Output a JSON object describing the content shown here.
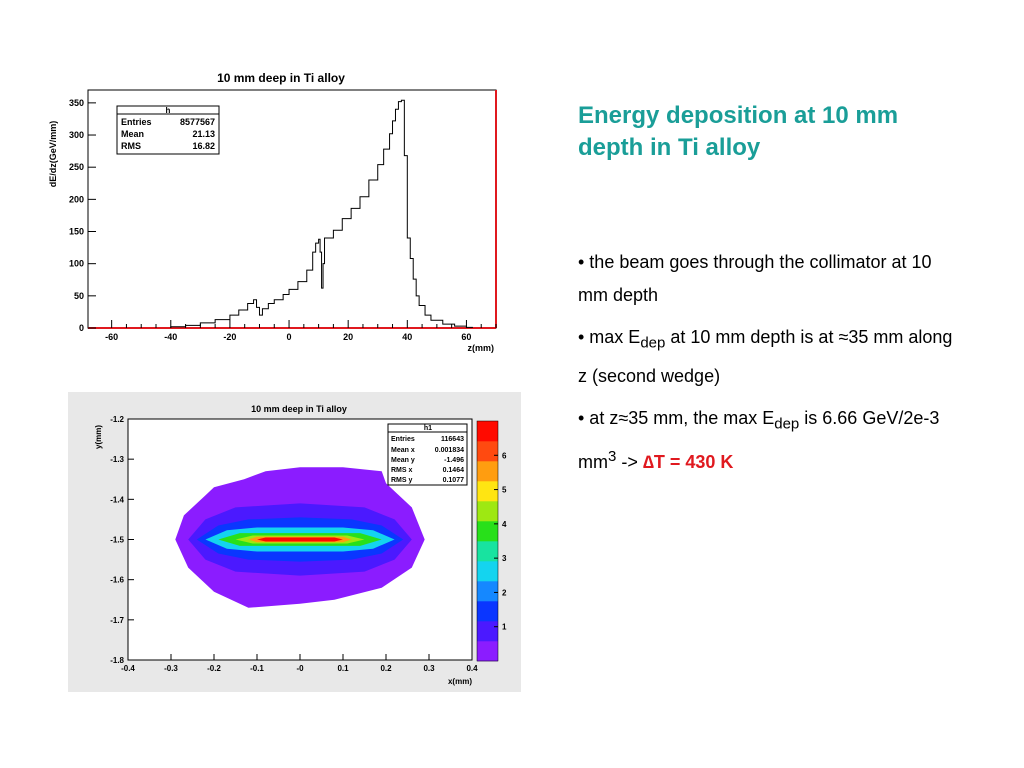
{
  "slide": {
    "title": "Energy deposition at 10 mm depth in Ti alloy",
    "bullets": [
      {
        "text": "• the beam goes through the collimator at 10 mm depth"
      },
      {
        "pre": "• max E",
        "sub": "dep",
        "post": " at 10 mm depth is at ≈35 mm along z (second wedge)"
      },
      {
        "pre": "• at z≈35 mm, the max E",
        "sub": "dep",
        "mid": " is 6.66 GeV/2e-3 mm",
        "sup": "3",
        "mid2": " -> ",
        "highlight": "∆T = 430 K"
      }
    ]
  },
  "chart_data": [
    {
      "type": "histogram",
      "title": "10 mm deep in Ti alloy",
      "xlabel": "z(mm)",
      "ylabel": "dE/dz(GeV/mm)",
      "xlim": [
        -68,
        70
      ],
      "ylim": [
        0,
        370
      ],
      "xticks": [
        -60,
        -40,
        -20,
        0,
        20,
        40,
        60
      ],
      "yticks": [
        0,
        50,
        100,
        150,
        200,
        250,
        300,
        350
      ],
      "stats_box": {
        "name": "h",
        "rows": [
          {
            "label": "Entries",
            "value": "8577567"
          },
          {
            "label": "Mean",
            "value": "21.13"
          },
          {
            "label": "RMS",
            "value": "16.82"
          }
        ]
      },
      "series": [
        {
          "points": [
            [
              -40,
              2
            ],
            [
              -35,
              4
            ],
            [
              -30,
              8
            ],
            [
              -25,
              13
            ],
            [
              -20,
              20
            ],
            [
              -17,
              28
            ],
            [
              -14,
              38
            ],
            [
              -12,
              44
            ],
            [
              -11,
              32
            ],
            [
              -10,
              20
            ],
            [
              -9,
              30
            ],
            [
              -7,
              38
            ],
            [
              -5,
              44
            ],
            [
              -2,
              52
            ],
            [
              0,
              60
            ],
            [
              3,
              72
            ],
            [
              6,
              90
            ],
            [
              8,
              118
            ],
            [
              9,
              132
            ],
            [
              10,
              138
            ],
            [
              10.5,
              118
            ],
            [
              11,
              62
            ],
            [
              11.5,
              100
            ],
            [
              12,
              140
            ],
            [
              15,
              152
            ],
            [
              18,
              170
            ],
            [
              21,
              186
            ],
            [
              24,
              204
            ],
            [
              27,
              230
            ],
            [
              30,
              254
            ],
            [
              32,
              278
            ],
            [
              34,
              302
            ],
            [
              35,
              322
            ],
            [
              36,
              340
            ],
            [
              37,
              352
            ],
            [
              38,
              354
            ],
            [
              39,
              268
            ],
            [
              40,
              140
            ],
            [
              41,
              108
            ],
            [
              42,
              76
            ],
            [
              43,
              50
            ],
            [
              44,
              35
            ],
            [
              46,
              20
            ],
            [
              48,
              12
            ],
            [
              52,
              6
            ],
            [
              56,
              3
            ],
            [
              60,
              1
            ],
            [
              62,
              0
            ]
          ]
        }
      ]
    },
    {
      "type": "heatmap",
      "title": "10 mm deep in Ti alloy",
      "xlabel": "x(mm)",
      "ylabel": "y(mm)",
      "xlim": [
        -0.4,
        0.4
      ],
      "ylim": [
        -1.8,
        -1.2
      ],
      "xticks": [
        "-0.4",
        "-0.3",
        "-0.2",
        "-0.1",
        "-0",
        "0.1",
        "0.2",
        "0.3",
        "0.4"
      ],
      "yticks": [
        "-1.2",
        "-1.3",
        "-1.4",
        "-1.5",
        "-1.6",
        "-1.7",
        "-1.8"
      ],
      "zlim": [
        0,
        7
      ],
      "zticks": [
        "1",
        "2",
        "3",
        "4",
        "5",
        "6"
      ],
      "stats_box": {
        "name": "h1",
        "rows": [
          {
            "label": "Entries",
            "value": "116643"
          },
          {
            "label": "Mean x",
            "value": "0.001834"
          },
          {
            "label": "Mean y",
            "value": "-1.496"
          },
          {
            "label": "RMS x",
            "value": "0.1464"
          },
          {
            "label": "RMS y",
            "value": "0.1077"
          }
        ]
      },
      "contours": [
        {
          "level": 0.3,
          "polygon": [
            [
              -0.29,
              -1.5
            ],
            [
              -0.27,
              -1.44
            ],
            [
              -0.22,
              -1.39
            ],
            [
              -0.2,
              -1.37
            ],
            [
              -0.13,
              -1.35
            ],
            [
              -0.08,
              -1.33
            ],
            [
              0,
              -1.32
            ],
            [
              0.1,
              -1.32
            ],
            [
              0.19,
              -1.33
            ],
            [
              0.2,
              -1.36
            ],
            [
              0.26,
              -1.42
            ],
            [
              0.29,
              -1.5
            ],
            [
              0.26,
              -1.57
            ],
            [
              0.19,
              -1.62
            ],
            [
              0.08,
              -1.65
            ],
            [
              0,
              -1.66
            ],
            [
              -0.12,
              -1.67
            ],
            [
              -0.2,
              -1.63
            ],
            [
              -0.26,
              -1.57
            ]
          ]
        },
        {
          "level": 0.8,
          "polygon": [
            [
              -0.26,
              -1.5
            ],
            [
              -0.22,
              -1.45
            ],
            [
              -0.15,
              -1.42
            ],
            [
              0,
              -1.41
            ],
            [
              0.15,
              -1.42
            ],
            [
              0.22,
              -1.45
            ],
            [
              0.26,
              -1.5
            ],
            [
              0.22,
              -1.55
            ],
            [
              0.15,
              -1.58
            ],
            [
              0,
              -1.59
            ],
            [
              -0.15,
              -1.58
            ],
            [
              -0.22,
              -1.55
            ]
          ]
        },
        {
          "level": 1.5,
          "polygon": [
            [
              -0.24,
              -1.5
            ],
            [
              -0.19,
              -1.465
            ],
            [
              -0.12,
              -1.45
            ],
            [
              0,
              -1.445
            ],
            [
              0.12,
              -1.45
            ],
            [
              0.19,
              -1.465
            ],
            [
              0.24,
              -1.5
            ],
            [
              0.19,
              -1.535
            ],
            [
              0.12,
              -1.55
            ],
            [
              0,
              -1.555
            ],
            [
              -0.12,
              -1.55
            ],
            [
              -0.19,
              -1.535
            ]
          ]
        },
        {
          "level": 2.5,
          "polygon": [
            [
              -0.22,
              -1.5
            ],
            [
              -0.17,
              -1.477
            ],
            [
              -0.1,
              -1.47
            ],
            [
              0.1,
              -1.47
            ],
            [
              0.17,
              -1.477
            ],
            [
              0.22,
              -1.5
            ],
            [
              0.17,
              -1.523
            ],
            [
              0.1,
              -1.53
            ],
            [
              -0.1,
              -1.53
            ],
            [
              -0.17,
              -1.523
            ]
          ]
        },
        {
          "level": 3.5,
          "polygon": [
            [
              -0.19,
              -1.5
            ],
            [
              -0.14,
              -1.484
            ],
            [
              0.14,
              -1.484
            ],
            [
              0.19,
              -1.5
            ],
            [
              0.14,
              -1.516
            ],
            [
              -0.14,
              -1.516
            ]
          ]
        },
        {
          "level": 4.5,
          "polygon": [
            [
              -0.15,
              -1.5
            ],
            [
              -0.11,
              -1.49
            ],
            [
              0.11,
              -1.49
            ],
            [
              0.15,
              -1.5
            ],
            [
              0.11,
              -1.51
            ],
            [
              -0.11,
              -1.51
            ]
          ]
        },
        {
          "level": 5.5,
          "polygon": [
            [
              -0.12,
              -1.5
            ],
            [
              -0.1,
              -1.493
            ],
            [
              0.1,
              -1.493
            ],
            [
              0.12,
              -1.5
            ],
            [
              0.1,
              -1.507
            ],
            [
              -0.1,
              -1.507
            ]
          ]
        },
        {
          "level": 6.5,
          "polygon": [
            [
              -0.1,
              -1.5
            ],
            [
              -0.08,
              -1.495
            ],
            [
              0.08,
              -1.495
            ],
            [
              0.1,
              -1.5
            ],
            [
              0.08,
              -1.505
            ],
            [
              -0.08,
              -1.505
            ]
          ]
        }
      ]
    }
  ]
}
